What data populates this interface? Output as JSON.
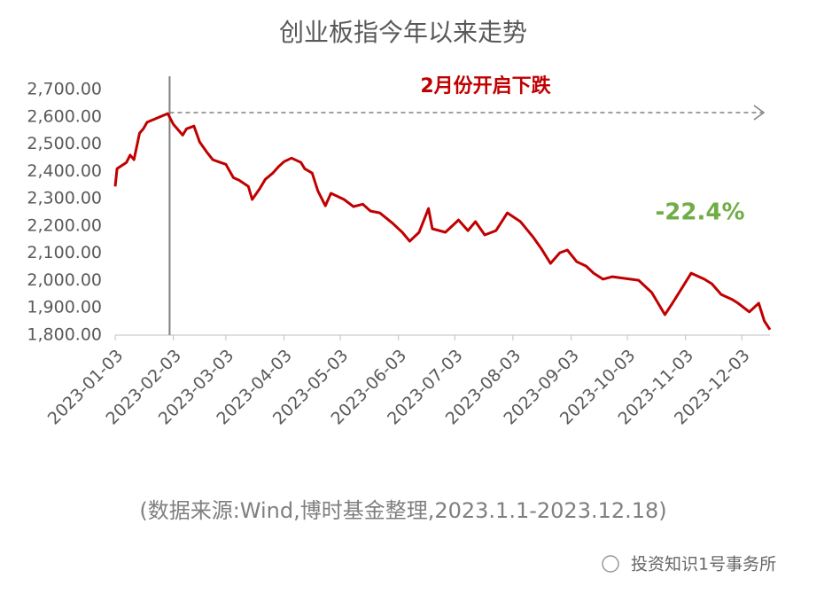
{
  "chart_data": {
    "type": "line",
    "title": "创业板指今年以来走势",
    "subtitle": "(数据来源:Wind,博时基金整理,2023.1.1-2023.12.18)",
    "watermark": "投资知识1号事务所",
    "annotations": [
      {
        "text": "2月份开启下跌",
        "color": "#c00000"
      },
      {
        "text": "-22.4%",
        "color": "#70ad47"
      }
    ],
    "marker_x": "2023-02-01",
    "x": [
      "2023-01-03",
      "2023-01-04",
      "2023-01-09",
      "2023-01-11",
      "2023-01-13",
      "2023-01-16",
      "2023-01-18",
      "2023-01-20",
      "2023-01-31",
      "2023-02-03",
      "2023-02-08",
      "2023-02-10",
      "2023-02-14",
      "2023-02-17",
      "2023-02-21",
      "2023-02-24",
      "2023-02-28",
      "2023-03-03",
      "2023-03-07",
      "2023-03-10",
      "2023-03-15",
      "2023-03-17",
      "2023-03-21",
      "2023-03-24",
      "2023-03-28",
      "2023-03-31",
      "2023-04-03",
      "2023-04-07",
      "2023-04-12",
      "2023-04-14",
      "2023-04-18",
      "2023-04-21",
      "2023-04-25",
      "2023-04-28",
      "2023-05-05",
      "2023-05-10",
      "2023-05-15",
      "2023-05-19",
      "2023-05-24",
      "2023-05-31",
      "2023-06-05",
      "2023-06-09",
      "2023-06-14",
      "2023-06-19",
      "2023-06-21",
      "2023-06-28",
      "2023-07-05",
      "2023-07-10",
      "2023-07-14",
      "2023-07-19",
      "2023-07-25",
      "2023-07-31",
      "2023-08-07",
      "2023-08-14",
      "2023-08-18",
      "2023-08-23",
      "2023-08-28",
      "2023-09-01",
      "2023-09-06",
      "2023-09-11",
      "2023-09-15",
      "2023-09-20",
      "2023-09-25",
      "2023-10-09",
      "2023-10-16",
      "2023-10-23",
      "2023-10-27",
      "2023-11-01",
      "2023-11-06",
      "2023-11-13",
      "2023-11-17",
      "2023-11-22",
      "2023-11-28",
      "2023-12-01",
      "2023-12-07",
      "2023-12-12",
      "2023-12-15",
      "2023-12-18"
    ],
    "series": [
      {
        "name": "创业板指",
        "color": "#c00000",
        "values": [
          2345,
          2410,
          2433,
          2460,
          2443,
          2540,
          2556,
          2580,
          2612,
          2573,
          2533,
          2556,
          2566,
          2508,
          2469,
          2443,
          2433,
          2426,
          2377,
          2368,
          2345,
          2297,
          2336,
          2371,
          2394,
          2417,
          2436,
          2449,
          2433,
          2410,
          2394,
          2329,
          2274,
          2320,
          2297,
          2271,
          2280,
          2255,
          2248,
          2209,
          2177,
          2144,
          2177,
          2264,
          2190,
          2177,
          2222,
          2183,
          2216,
          2167,
          2183,
          2248,
          2216,
          2157,
          2118,
          2063,
          2102,
          2112,
          2069,
          2053,
          2027,
          2005,
          2014,
          2001,
          1956,
          1875,
          1917,
          1972,
          2027,
          2005,
          1988,
          1949,
          1930,
          1917,
          1885,
          1917,
          1852,
          1820
        ]
      }
    ],
    "xlim": [
      "2023-01-03",
      "2023-12-18"
    ],
    "xticks": [
      "2023-01-03",
      "2023-02-03",
      "2023-03-03",
      "2023-04-03",
      "2023-05-03",
      "2023-06-03",
      "2023-07-03",
      "2023-08-03",
      "2023-09-03",
      "2023-10-03",
      "2023-11-03",
      "2023-12-03"
    ],
    "ylim": [
      1800,
      2700
    ],
    "yticks": [
      {
        "value": 1800,
        "label": "1,800.00"
      },
      {
        "value": 1900,
        "label": "1,900.00"
      },
      {
        "value": 2000,
        "label": "2,000.00"
      },
      {
        "value": 2100,
        "label": "2,100.00"
      },
      {
        "value": 2200,
        "label": "2,200.00"
      },
      {
        "value": 2300,
        "label": "2,300.00"
      },
      {
        "value": 2400,
        "label": "2,400.00"
      },
      {
        "value": 2500,
        "label": "2,500.00"
      },
      {
        "value": 2600,
        "label": "2,600.00"
      },
      {
        "value": 2700,
        "label": "2,700.00"
      }
    ],
    "grid": false
  }
}
